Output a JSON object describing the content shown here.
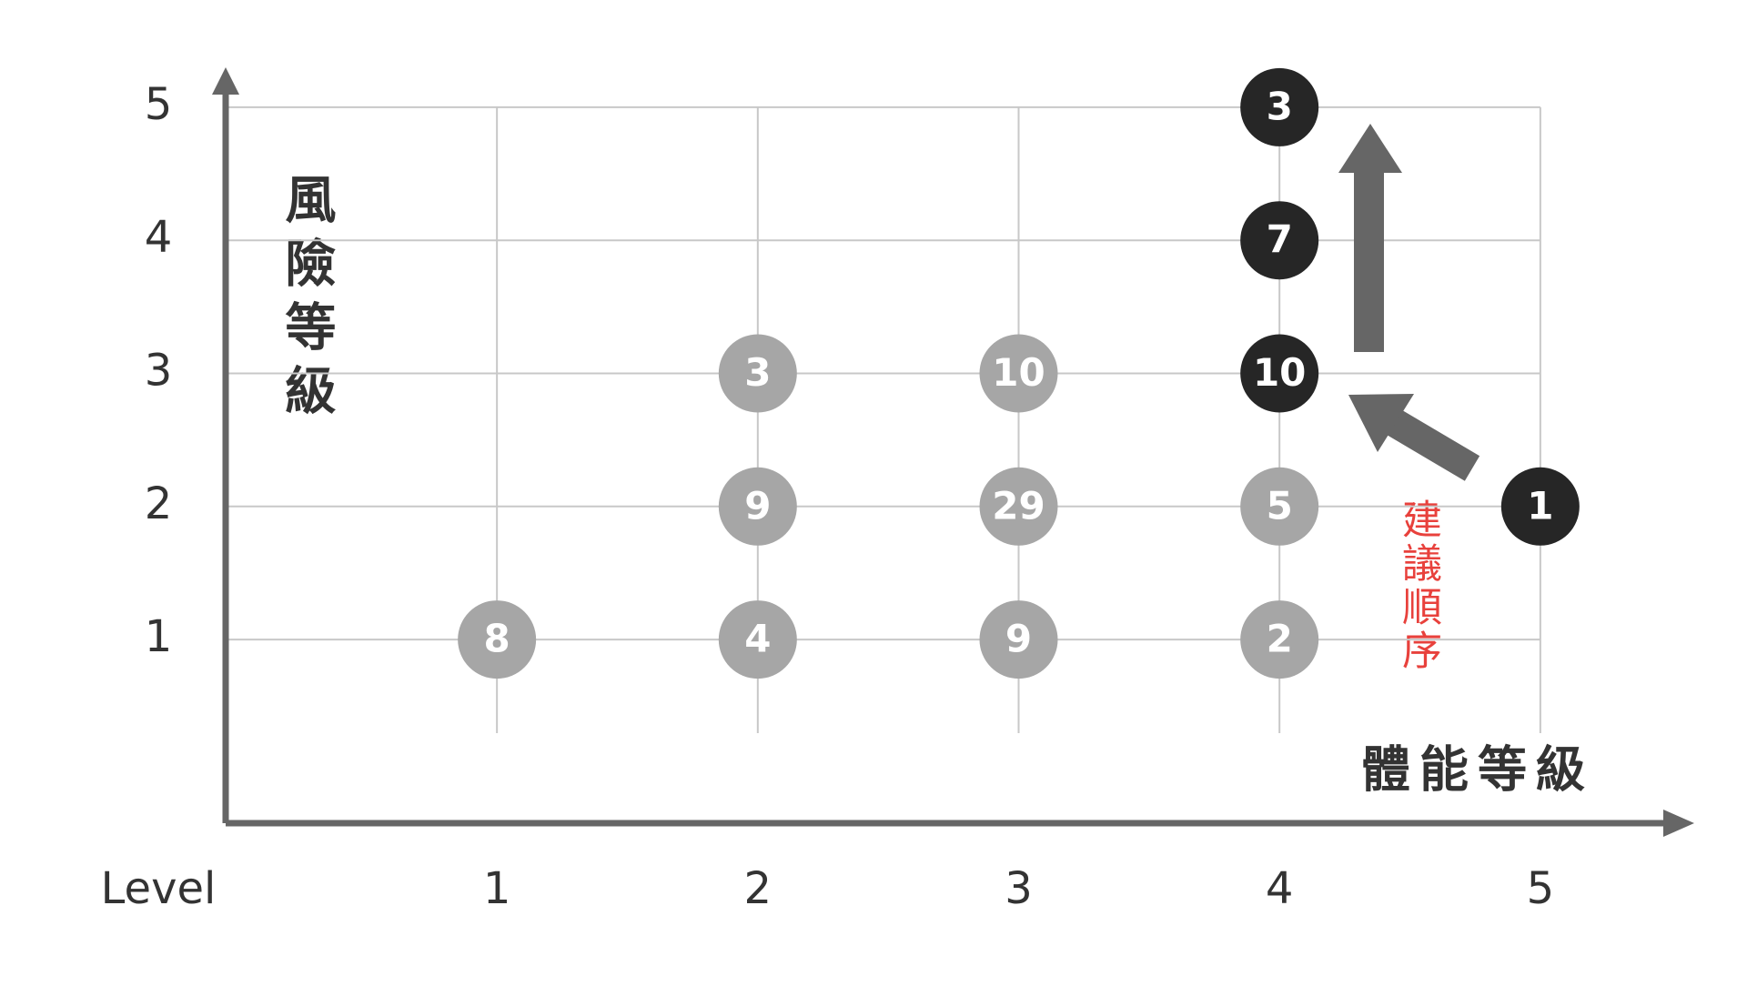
{
  "chart_data": {
    "type": "scatter",
    "x_label": "體能等級",
    "y_label": "風險等級",
    "x_tick_title": "Level",
    "annotation": "建議順序",
    "points": [
      {
        "x": 1,
        "y": 1,
        "value": 8,
        "color": "#a6a6a6"
      },
      {
        "x": 2,
        "y": 1,
        "value": 4,
        "color": "#a6a6a6"
      },
      {
        "x": 2,
        "y": 2,
        "value": 9,
        "color": "#a6a6a6"
      },
      {
        "x": 2,
        "y": 3,
        "value": 3,
        "color": "#a6a6a6"
      },
      {
        "x": 3,
        "y": 1,
        "value": 9,
        "color": "#a6a6a6"
      },
      {
        "x": 3,
        "y": 2,
        "value": 29,
        "color": "#a6a6a6"
      },
      {
        "x": 3,
        "y": 3,
        "value": 10,
        "color": "#a6a6a6"
      },
      {
        "x": 4,
        "y": 1,
        "value": 2,
        "color": "#a6a6a6"
      },
      {
        "x": 4,
        "y": 2,
        "value": 5,
        "color": "#a6a6a6"
      },
      {
        "x": 4,
        "y": 3,
        "value": 10,
        "color": "#262626"
      },
      {
        "x": 4,
        "y": 4,
        "value": 7,
        "color": "#262626"
      },
      {
        "x": 4,
        "y": 5,
        "value": 3,
        "color": "#262626"
      },
      {
        "x": 5,
        "y": 2,
        "value": 1,
        "color": "#262626"
      }
    ],
    "xlim": [
      -0.04,
      5.59
    ],
    "ylim": [
      -0.38,
      5.3
    ],
    "xticks": [
      1,
      2,
      3,
      4,
      5
    ],
    "yticks": [
      1,
      2,
      3,
      4,
      5
    ],
    "grid": true
  }
}
